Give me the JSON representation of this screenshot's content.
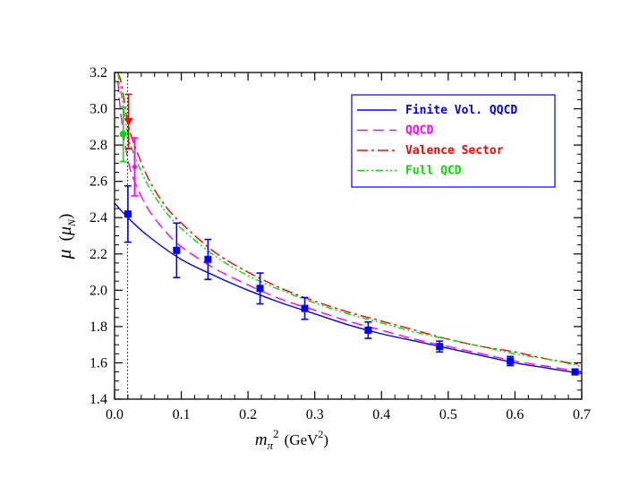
{
  "chart_data": {
    "type": "scatter",
    "title": "",
    "xlabel": {
      "main": "m",
      "sub": "π",
      "sup": "2",
      "unit": "(GeV",
      "unit_sup": "2",
      "unit_close": ")"
    },
    "ylabel": {
      "main": "μ",
      "open": "(",
      "mu": "μ",
      "sub": "N",
      "close": ")"
    },
    "xlim": [
      0,
      0.7
    ],
    "ylim": [
      1.4,
      3.2
    ],
    "x_ticks": [
      0,
      0.1,
      0.2,
      0.3,
      0.4,
      0.5,
      0.6,
      0.7
    ],
    "x_tick_labels": [
      "0.0",
      "0.1",
      "0.2",
      "0.3",
      "0.4",
      "0.5",
      "0.6",
      "0.7"
    ],
    "y_ticks": [
      1.4,
      1.6,
      1.8,
      2.0,
      2.2,
      2.4,
      2.6,
      2.8,
      3.0,
      3.2
    ],
    "y_tick_labels": [
      "1.4",
      "1.6",
      "1.8",
      "2.0",
      "2.2",
      "2.4",
      "2.6",
      "2.8",
      "3.0",
      "3.2"
    ],
    "grid": false,
    "legend_position": "top-right",
    "physical_pion_mass_sq": 0.0195,
    "series": [
      {
        "name": "Finite Vol. QQCD",
        "color": "#0000ff",
        "dash": "solid",
        "curve": {
          "x": [
            0.0,
            0.02,
            0.05,
            0.1,
            0.15,
            0.2,
            0.25,
            0.3,
            0.35,
            0.4,
            0.45,
            0.5,
            0.55,
            0.6,
            0.65,
            0.7
          ],
          "y": [
            2.48,
            2.4,
            2.3,
            2.17,
            2.08,
            2.0,
            1.93,
            1.87,
            1.81,
            1.76,
            1.72,
            1.68,
            1.64,
            1.6,
            1.57,
            1.54
          ]
        }
      },
      {
        "name": "QQCD",
        "color": "#ff00ff",
        "dash": "dashed",
        "curve": {
          "x": [
            0.005,
            0.01,
            0.02,
            0.03,
            0.05,
            0.075,
            0.1,
            0.15,
            0.2,
            0.25,
            0.3,
            0.35,
            0.4,
            0.45,
            0.5,
            0.55,
            0.6,
            0.65,
            0.7
          ],
          "y": [
            3.15,
            2.95,
            2.72,
            2.6,
            2.45,
            2.33,
            2.24,
            2.12,
            2.03,
            1.95,
            1.89,
            1.83,
            1.78,
            1.73,
            1.69,
            1.65,
            1.61,
            1.58,
            1.55
          ]
        }
      },
      {
        "name": "Valence Sector",
        "color": "#ff0000",
        "dash": "dashdot",
        "curve": {
          "x": [
            0.005,
            0.01,
            0.02,
            0.03,
            0.05,
            0.075,
            0.1,
            0.15,
            0.2,
            0.25,
            0.3,
            0.35,
            0.4,
            0.45,
            0.5,
            0.55,
            0.6,
            0.65,
            0.7
          ],
          "y": [
            3.2,
            3.14,
            2.92,
            2.8,
            2.62,
            2.47,
            2.37,
            2.21,
            2.1,
            2.01,
            1.94,
            1.88,
            1.83,
            1.78,
            1.73,
            1.69,
            1.66,
            1.62,
            1.59
          ]
        }
      },
      {
        "name": "Full QCD",
        "color": "#00e000",
        "dash": "dashdotdot",
        "curve": {
          "x": [
            0.005,
            0.01,
            0.02,
            0.03,
            0.05,
            0.075,
            0.1,
            0.15,
            0.2,
            0.25,
            0.3,
            0.35,
            0.4,
            0.45,
            0.5,
            0.55,
            0.6,
            0.65,
            0.7
          ],
          "y": [
            3.2,
            3.08,
            2.86,
            2.74,
            2.58,
            2.44,
            2.34,
            2.19,
            2.08,
            2.0,
            1.93,
            1.87,
            1.82,
            1.77,
            1.73,
            1.69,
            1.65,
            1.62,
            1.58
          ]
        }
      }
    ],
    "lattice_points": {
      "color": "#0000ff",
      "marker": "square",
      "x": [
        0.02,
        0.093,
        0.14,
        0.218,
        0.285,
        0.38,
        0.487,
        0.593,
        0.69
      ],
      "y": [
        2.42,
        2.22,
        2.17,
        2.01,
        1.9,
        1.78,
        1.69,
        1.61,
        1.55
      ],
      "err": [
        0.155,
        0.15,
        0.11,
        0.085,
        0.06,
        0.045,
        0.03,
        0.025,
        0.015
      ]
    },
    "extrapolated_points": [
      {
        "series": "Full QCD",
        "color": "#00e000",
        "marker": "circle",
        "x": 0.013,
        "y": 2.86,
        "err": 0.15
      },
      {
        "series": "Valence Sector",
        "color": "#ff0000",
        "marker": "triangle-down",
        "x": 0.021,
        "y": 2.93,
        "err": 0.15
      },
      {
        "series": "QQCD",
        "color": "#ff00ff",
        "marker": "diamond",
        "x": 0.03,
        "y": 2.68,
        "err": 0.16
      }
    ]
  }
}
